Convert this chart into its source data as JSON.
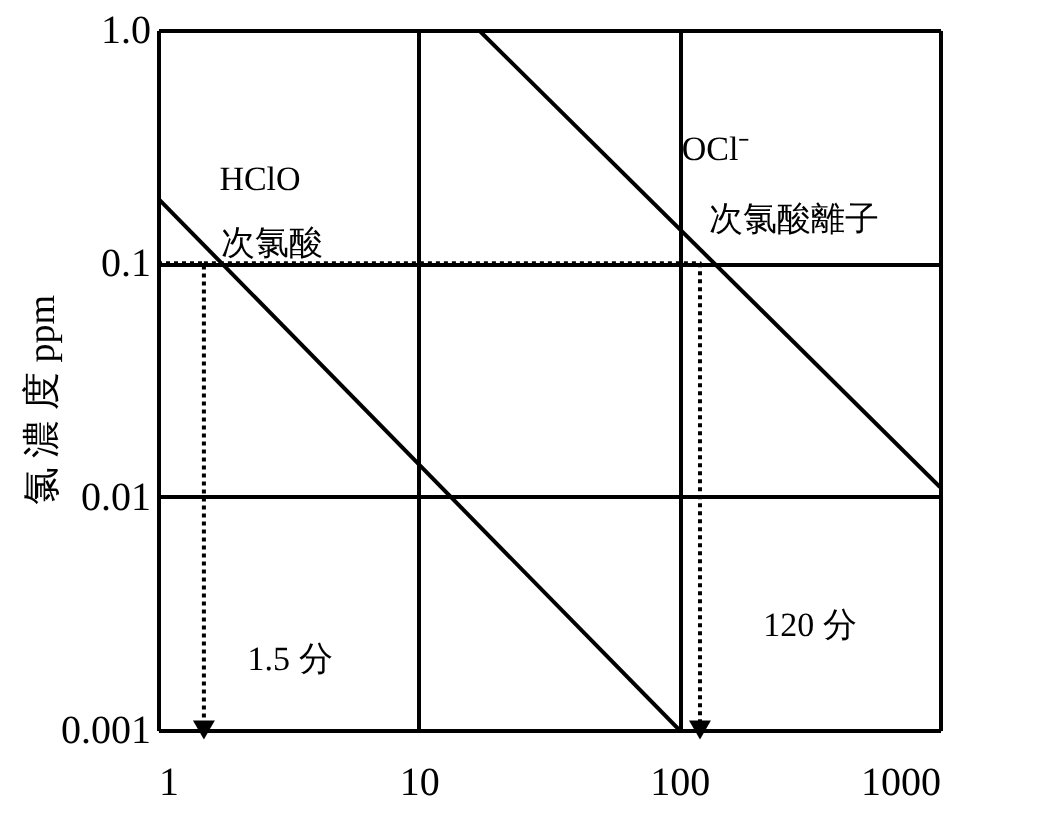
{
  "chart_data": {
    "type": "line",
    "ylabel": "氯 濃 度 ppm",
    "log": "xy",
    "grid": true,
    "xlim": [
      1,
      1000
    ],
    "xticks": [
      1,
      10,
      100,
      1000
    ],
    "ylim": [
      0.001,
      1
    ],
    "yticks": [
      0.001,
      0.01,
      0.1,
      {
        "value": 1,
        "label": "1.0"
      }
    ],
    "series": [
      {
        "color": "#000000",
        "line_style": "solid",
        "x": [
          1,
          100
        ],
        "values": [
          0.19,
          0.001
        ]
      },
      {
        "color": "#000000",
        "line_style": "solid",
        "x": [
          17,
          1000
        ],
        "values": [
          1,
          0.011
        ]
      },
      {
        "color": "#000000",
        "line_style": "dotted",
        "x": [
          1,
          1.5,
          1.5
        ],
        "values": [
          0.1,
          0.1,
          0.001
        ]
      },
      {
        "color": "#000000",
        "line_style": "dotted",
        "x": [
          1.5,
          120,
          120
        ],
        "values": [
          0.1,
          0.1,
          0.001
        ]
      }
    ],
    "annotations": [
      "HClO",
      "次氯酸",
      "OCl⁻",
      "次氯酸離子",
      "1.5 分",
      "120 分"
    ]
  }
}
